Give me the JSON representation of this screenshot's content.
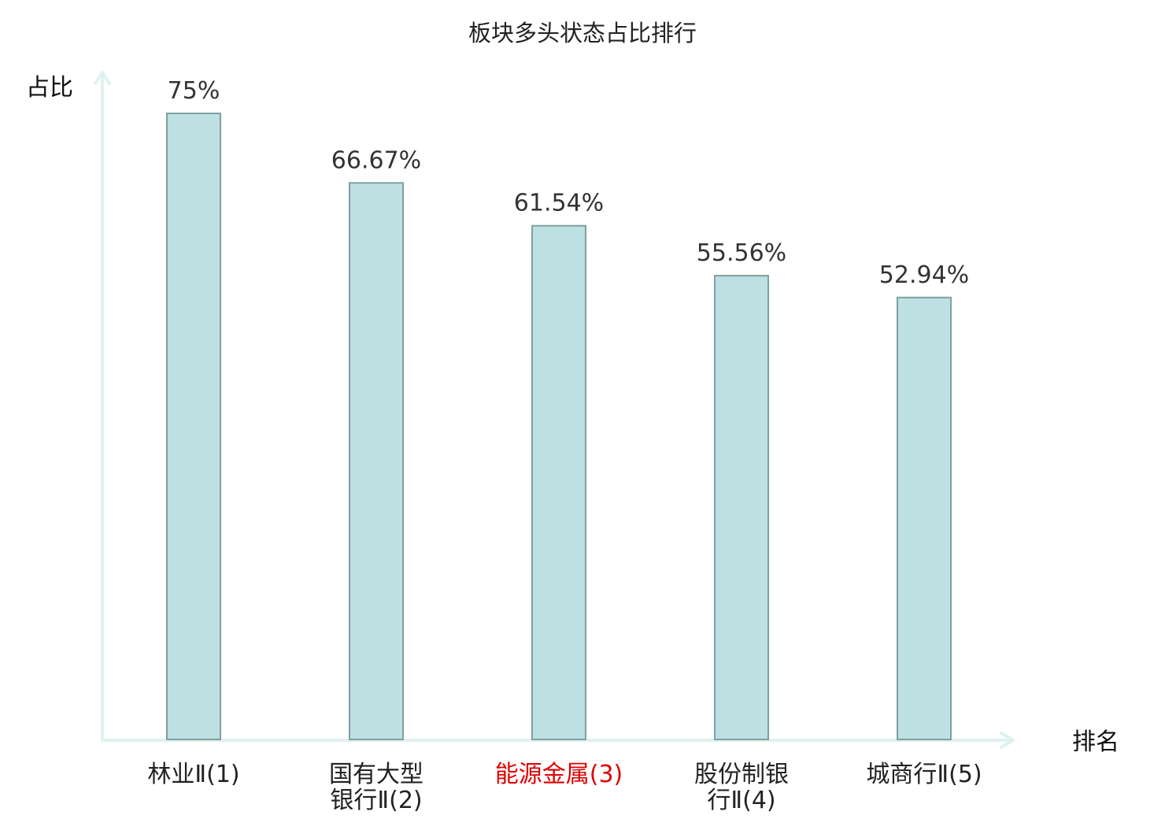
{
  "chart_data": {
    "type": "bar",
    "title": "板块多头状态占比排行",
    "ylabel": "占比",
    "xlabel": "排名",
    "categories": [
      [
        "林业Ⅱ(1)"
      ],
      [
        "国有大型",
        "银行Ⅱ(2)"
      ],
      [
        "能源金属(3)"
      ],
      [
        "股份制银",
        "行Ⅱ(4)"
      ],
      [
        "城商行Ⅱ(5)"
      ]
    ],
    "values": [
      75,
      66.67,
      61.54,
      55.56,
      52.94
    ],
    "value_labels": [
      "75%",
      "66.67%",
      "61.54%",
      "55.56%",
      "52.94%"
    ],
    "highlight_index": 2,
    "ylim": [
      0,
      75
    ],
    "grid": false,
    "colors": {
      "bar_fill": "#bde0e2",
      "bar_stroke": "#7f9fa0",
      "axis": "#dff1ef",
      "highlight_label": "#e00000"
    }
  }
}
